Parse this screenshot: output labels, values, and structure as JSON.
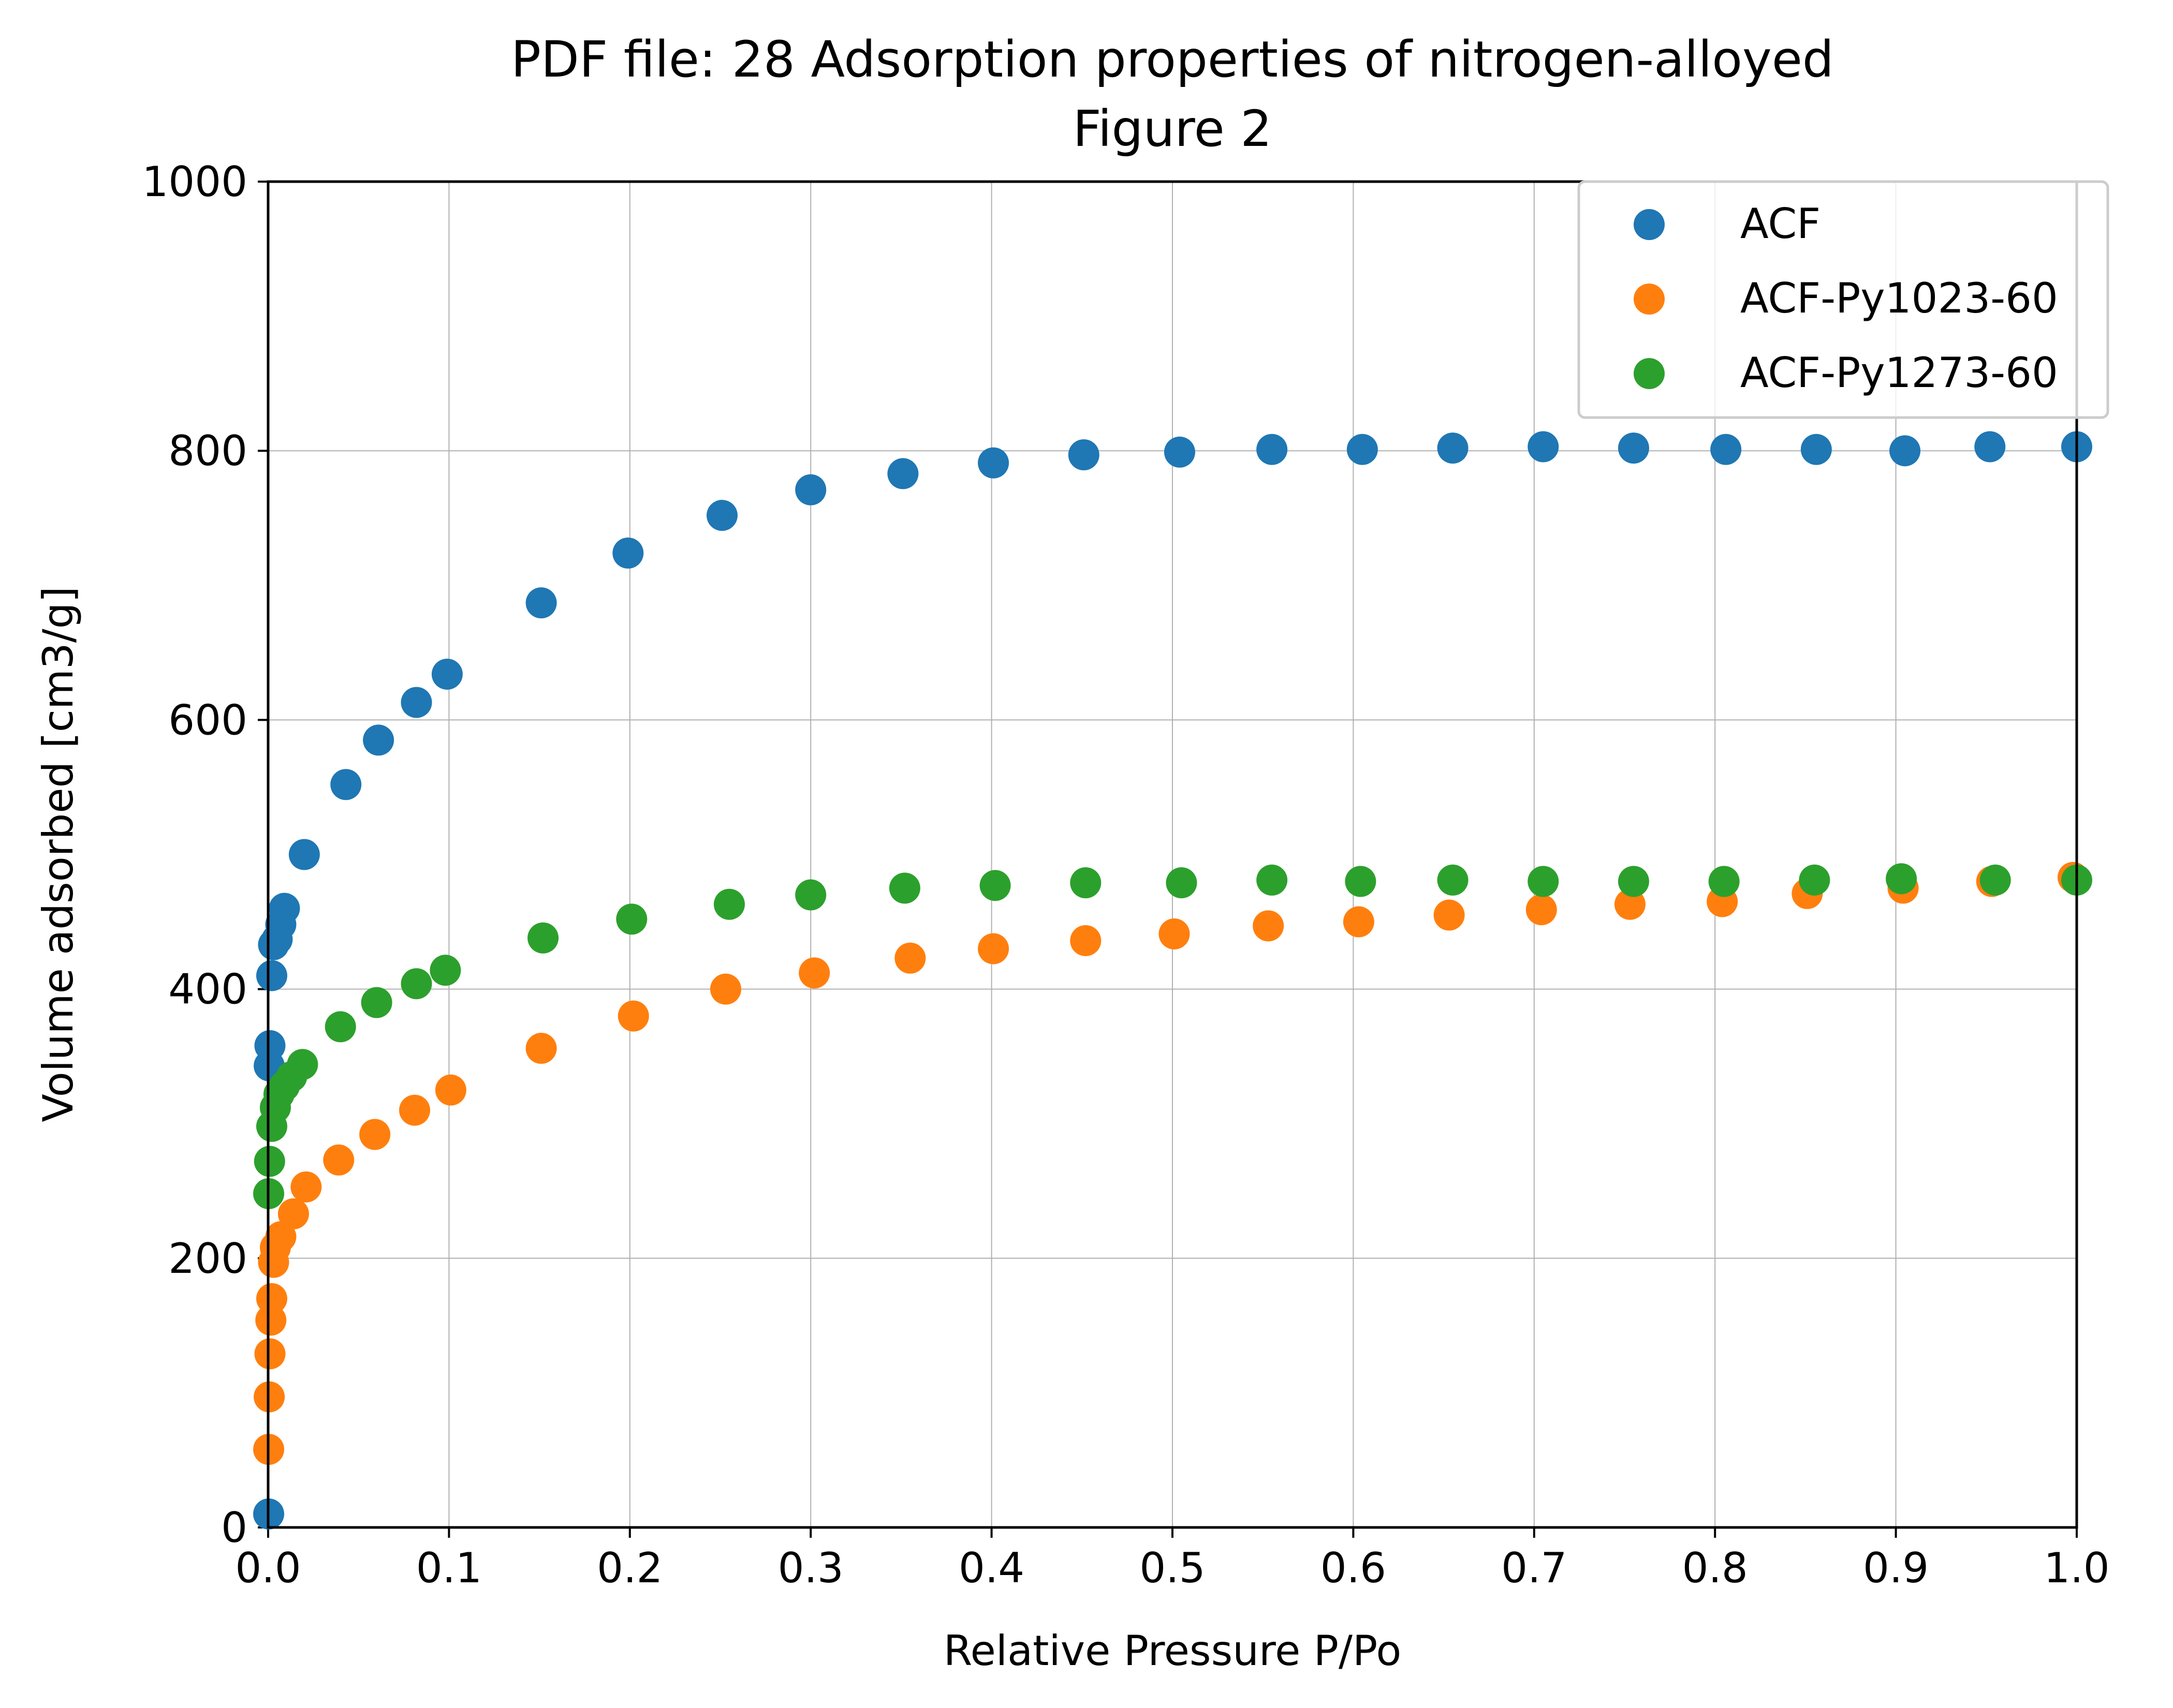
{
  "chart_data": {
    "type": "scatter",
    "title": "PDF file: 28 Adsorption properties of nitrogen-alloyed",
    "subtitle": "Figure 2",
    "xlabel": "Relative Pressure P/Po",
    "ylabel": "Volume adsorbed [cm3/g]",
    "xlim": [
      0,
      1.0
    ],
    "ylim": [
      0,
      1000
    ],
    "xticks": [
      "0.0",
      "0.1",
      "0.2",
      "0.3",
      "0.4",
      "0.5",
      "0.6",
      "0.7",
      "0.8",
      "0.9",
      "1.0"
    ],
    "yticks": [
      "0",
      "200",
      "400",
      "600",
      "800",
      "1000"
    ],
    "grid": true,
    "legend_position": "top-right",
    "series": [
      {
        "name": "ACF",
        "color": "#1f77b4",
        "x": [
          0.0003,
          0.0006,
          0.001,
          0.002,
          0.003,
          0.005,
          0.007,
          0.009,
          0.02,
          0.043,
          0.061,
          0.082,
          0.099,
          0.151,
          0.199,
          0.251,
          0.3,
          0.351,
          0.401,
          0.451,
          0.504,
          0.555,
          0.605,
          0.655,
          0.705,
          0.755,
          0.806,
          0.856,
          0.905,
          0.952,
          1.0
        ],
        "y": [
          10,
          343,
          358,
          410,
          433,
          437,
          448,
          460,
          500,
          552,
          585,
          613,
          634,
          687,
          724,
          752,
          771,
          783,
          791,
          797,
          799,
          801,
          801,
          802,
          803,
          802,
          801,
          801,
          800,
          803,
          803
        ]
      },
      {
        "name": "ACF-Py1023-60",
        "color": "#ff7f0e",
        "x": [
          0.0003,
          0.0006,
          0.001,
          0.0015,
          0.002,
          0.003,
          0.004,
          0.007,
          0.014,
          0.021,
          0.039,
          0.059,
          0.081,
          0.101,
          0.151,
          0.202,
          0.253,
          0.302,
          0.355,
          0.401,
          0.452,
          0.501,
          0.553,
          0.603,
          0.653,
          0.704,
          0.753,
          0.804,
          0.851,
          0.904,
          0.953,
          0.998
        ],
        "y": [
          58,
          97,
          129,
          154,
          170,
          197,
          208,
          216,
          233,
          253,
          273,
          292,
          310,
          325,
          356,
          380,
          400,
          412,
          423,
          430,
          436,
          441,
          447,
          450,
          455,
          459,
          463,
          465,
          471,
          475,
          480,
          483
        ]
      },
      {
        "name": "ACF-Py1273-60",
        "color": "#2ca02c",
        "x": [
          0.0003,
          0.0008,
          0.002,
          0.004,
          0.006,
          0.009,
          0.013,
          0.019,
          0.04,
          0.06,
          0.082,
          0.098,
          0.152,
          0.201,
          0.255,
          0.3,
          0.352,
          0.402,
          0.452,
          0.505,
          0.555,
          0.604,
          0.655,
          0.705,
          0.755,
          0.805,
          0.855,
          0.903,
          0.955,
          1.0
        ],
        "y": [
          248,
          272,
          298,
          312,
          322,
          328,
          335,
          344,
          372,
          390,
          404,
          414,
          438,
          452,
          463,
          470,
          475,
          477,
          479,
          479,
          481,
          480,
          481,
          480,
          480,
          480,
          481,
          482,
          481,
          481
        ]
      }
    ]
  }
}
